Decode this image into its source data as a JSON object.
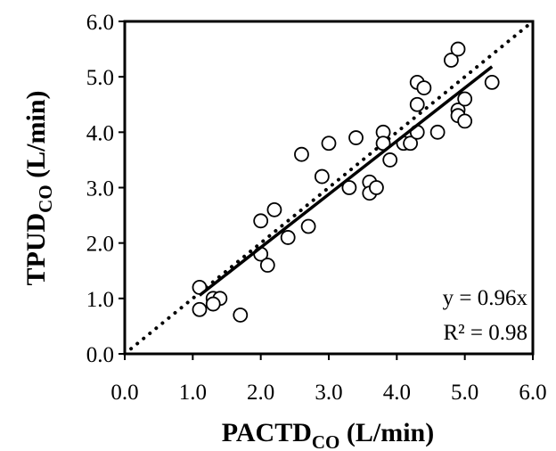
{
  "chart_data": {
    "type": "scatter",
    "xlabel": {
      "main": "PACTD",
      "sub": "CO",
      "unit": " (L/min)"
    },
    "ylabel": {
      "main": "TPUD",
      "sub": "CO",
      "unit": " (L/min)"
    },
    "xlim": [
      0.0,
      6.0
    ],
    "ylim": [
      0.0,
      6.0
    ],
    "xticks": [
      "0.0",
      "1.0",
      "2.0",
      "3.0",
      "4.0",
      "5.0",
      "6.0"
    ],
    "yticks": [
      "0.0",
      "1.0",
      "2.0",
      "3.0",
      "4.0",
      "5.0",
      "6.0"
    ],
    "grid": false,
    "legend": "none",
    "points": [
      [
        1.1,
        1.2
      ],
      [
        1.1,
        0.8
      ],
      [
        1.3,
        1.0
      ],
      [
        1.4,
        1.0
      ],
      [
        1.3,
        0.9
      ],
      [
        1.7,
        0.7
      ],
      [
        2.0,
        2.4
      ],
      [
        2.0,
        1.8
      ],
      [
        2.1,
        1.6
      ],
      [
        2.2,
        2.6
      ],
      [
        2.4,
        2.1
      ],
      [
        2.6,
        3.6
      ],
      [
        2.7,
        2.3
      ],
      [
        2.9,
        3.2
      ],
      [
        3.0,
        3.8
      ],
      [
        3.3,
        3.0
      ],
      [
        3.4,
        3.9
      ],
      [
        3.6,
        3.1
      ],
      [
        3.6,
        2.9
      ],
      [
        3.7,
        3.0
      ],
      [
        3.8,
        4.0
      ],
      [
        3.8,
        3.8
      ],
      [
        3.9,
        3.5
      ],
      [
        4.1,
        3.8
      ],
      [
        4.2,
        3.8
      ],
      [
        4.3,
        4.9
      ],
      [
        4.3,
        4.5
      ],
      [
        4.3,
        4.0
      ],
      [
        4.4,
        4.8
      ],
      [
        4.6,
        4.0
      ],
      [
        4.8,
        5.3
      ],
      [
        4.9,
        5.5
      ],
      [
        4.9,
        4.4
      ],
      [
        4.9,
        4.3
      ],
      [
        5.0,
        4.6
      ],
      [
        5.0,
        4.2
      ],
      [
        5.4,
        4.9
      ]
    ],
    "fit_line": {
      "slope": 0.96,
      "x_range": [
        1.1,
        5.4
      ],
      "style": "solid"
    },
    "identity_line": {
      "x_range": [
        0.0,
        6.0
      ],
      "style": "dotted"
    },
    "annotations": {
      "equation": "y = 0.96x",
      "r_squared": "R² = 0.98"
    }
  }
}
